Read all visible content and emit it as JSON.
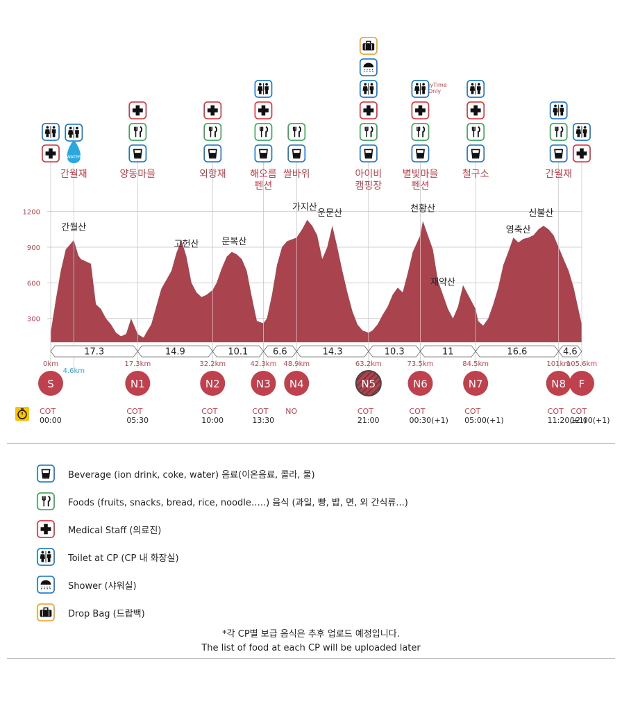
{
  "colors": {
    "fill": "#a9434e",
    "accent": "#c0414e",
    "water": "#29a8df",
    "blue": "#1a77c8",
    "green": "#3aa655",
    "orange": "#f0a030",
    "red": "#d9343f"
  },
  "chart_data": {
    "type": "area",
    "xlabel": "",
    "ylabel": "",
    "xlim": [
      0,
      105.6
    ],
    "ylim": [
      100,
      1250
    ],
    "yticks": [
      300,
      600,
      900,
      1200
    ],
    "x": [
      0,
      1,
      2,
      3,
      4.6,
      5.5,
      6,
      7,
      8,
      9,
      10,
      11,
      12,
      13,
      14,
      15,
      16,
      17.3,
      18,
      18.5,
      19,
      20,
      21,
      22,
      24,
      25,
      26,
      27,
      28,
      29,
      30,
      31,
      32.2,
      33,
      34,
      35,
      36,
      37,
      38,
      39,
      40,
      41,
      42.3,
      43,
      44,
      45,
      46,
      47,
      48.9,
      50,
      51,
      52,
      53,
      54,
      55,
      56,
      57,
      58,
      59,
      60,
      61,
      62,
      63.2,
      64,
      65,
      66,
      67,
      68,
      69,
      70,
      71,
      72,
      73.5,
      74,
      75,
      76,
      77,
      78,
      79,
      80,
      81,
      82,
      83,
      84.5,
      85,
      86,
      87,
      88,
      89,
      90,
      91,
      92,
      93,
      94,
      95,
      96,
      97,
      98,
      99,
      100,
      101,
      102,
      103,
      104,
      105.6
    ],
    "y": [
      180,
      450,
      700,
      880,
      960,
      830,
      800,
      780,
      760,
      420,
      380,
      300,
      250,
      180,
      150,
      170,
      300,
      170,
      150,
      140,
      180,
      250,
      400,
      550,
      700,
      850,
      960,
      820,
      600,
      520,
      480,
      500,
      540,
      600,
      720,
      820,
      860,
      840,
      800,
      700,
      480,
      280,
      260,
      300,
      500,
      750,
      900,
      950,
      980,
      1050,
      1130,
      1080,
      1000,
      800,
      900,
      1080,
      900,
      700,
      520,
      360,
      250,
      200,
      180,
      200,
      250,
      330,
      400,
      500,
      560,
      520,
      680,
      860,
      1000,
      1120,
      1000,
      880,
      620,
      500,
      380,
      300,
      400,
      580,
      500,
      380,
      280,
      240,
      300,
      420,
      560,
      750,
      860,
      980,
      940,
      970,
      980,
      1000,
      1050,
      1080,
      1050,
      1000,
      900,
      800,
      700,
      560,
      250
    ]
  },
  "peaks": [
    {
      "name": "간월산",
      "km": 4.6
    },
    {
      "name": "고헌산",
      "km": 27.0
    },
    {
      "name": "문복산",
      "km": 36.5
    },
    {
      "name": "가지산",
      "km": 50.5
    },
    {
      "name": "운문산",
      "km": 55.5
    },
    {
      "name": "천황산",
      "km": 74.0
    },
    {
      "name": "재약산",
      "km": 78.0
    },
    {
      "name": "영축산",
      "km": 93.0
    },
    {
      "name": "신불산",
      "km": 97.5
    }
  ],
  "locations": [
    {
      "name": "간월재",
      "km": 4.6
    },
    {
      "name": "양동마을",
      "km": 17.3
    },
    {
      "name": "외항재",
      "km": 32.2
    },
    {
      "name": "해오름\n펜션",
      "km": 42.3
    },
    {
      "name": "쌀바위",
      "km": 48.9
    },
    {
      "name": "아이비\n캠핑장",
      "km": 63.2
    },
    {
      "name": "별빛마을\n펜션",
      "km": 73.5
    },
    {
      "name": "철구소",
      "km": 84.5
    },
    {
      "name": "간월재",
      "km": 101
    }
  ],
  "segments": [
    {
      "from": 0,
      "to": 17.3,
      "label": "17.3"
    },
    {
      "from": 17.3,
      "to": 32.2,
      "label": "14.9"
    },
    {
      "from": 32.2,
      "to": 42.3,
      "label": "10.1"
    },
    {
      "from": 42.3,
      "to": 48.9,
      "label": "6.6"
    },
    {
      "from": 48.9,
      "to": 63.2,
      "label": "14.3"
    },
    {
      "from": 63.2,
      "to": 73.5,
      "label": "10.3"
    },
    {
      "from": 73.5,
      "to": 84.5,
      "label": "11"
    },
    {
      "from": 84.5,
      "to": 101,
      "label": "16.6"
    },
    {
      "from": 101,
      "to": 105.6,
      "label": "4.6"
    }
  ],
  "checkpoints": [
    {
      "code": "S",
      "km_label": "0km",
      "km": 0,
      "cot_label": "COT",
      "cot_time": "00:00",
      "hatched": false
    },
    {
      "code": "N1",
      "km_label": "17.3km",
      "km": 17.3,
      "cot_label": "COT",
      "cot_time": "05:30",
      "hatched": false
    },
    {
      "code": "N2",
      "km_label": "32.2km",
      "km": 32.2,
      "cot_label": "COT",
      "cot_time": "10:00",
      "hatched": false
    },
    {
      "code": "N3",
      "km_label": "42.3km",
      "km": 42.3,
      "cot_label": "COT",
      "cot_time": "13:30",
      "hatched": false
    },
    {
      "code": "N4",
      "km_label": "48.9km",
      "km": 48.9,
      "cot_label": "NO",
      "cot_time": "",
      "hatched": false
    },
    {
      "code": "N5",
      "km_label": "63.2km",
      "km": 63.2,
      "cot_label": "COT",
      "cot_time": "21:00",
      "hatched": true
    },
    {
      "code": "N6",
      "km_label": "73.5km",
      "km": 73.5,
      "cot_label": "COT",
      "cot_time": "00:30(+1)",
      "hatched": false
    },
    {
      "code": "N7",
      "km_label": "84.5km",
      "km": 84.5,
      "cot_label": "COT",
      "cot_time": "05:00(+1)",
      "hatched": false
    },
    {
      "code": "N8",
      "km_label": "101km",
      "km": 101,
      "cot_label": "COT",
      "cot_time": "11:20(+1)",
      "hatched": false
    },
    {
      "code": "F",
      "km_label": "105.6km",
      "km": 105.6,
      "cot_label": "COT",
      "cot_time": "12:00(+1)",
      "hatched": false
    }
  ],
  "water_marker": {
    "km": 4.6,
    "km_label": "4.6km",
    "text": "WATER"
  },
  "icon_stacks": [
    {
      "km": 0,
      "icons": [
        "toilet-icon",
        "medical-icon"
      ]
    },
    {
      "km": 17.3,
      "icons": [
        "medical-icon",
        "food-icon",
        "beverage-icon"
      ]
    },
    {
      "km": 32.2,
      "icons": [
        "medical-icon",
        "food-icon",
        "beverage-icon"
      ]
    },
    {
      "km": 42.3,
      "icons": [
        "toilet-icon",
        "medical-icon",
        "food-icon",
        "beverage-icon"
      ]
    },
    {
      "km": 48.9,
      "icons": [
        "food-icon",
        "beverage-icon"
      ]
    },
    {
      "km": 63.2,
      "icons": [
        "dropbag-icon",
        "shower-icon",
        "toilet-icon",
        "medical-icon",
        "food-icon",
        "beverage-icon"
      ]
    },
    {
      "km": 73.5,
      "icons": [
        "toilet-icon",
        "medical-icon",
        "food-icon",
        "beverage-icon"
      ]
    },
    {
      "km": 84.5,
      "icons": [
        "toilet-icon",
        "medical-icon",
        "food-icon",
        "beverage-icon"
      ]
    },
    {
      "km": 101,
      "icons": [
        "toilet-icon",
        "food-icon",
        "beverage-icon"
      ]
    },
    {
      "km": 105.6,
      "icons": [
        "toilet-icon",
        "medical-icon"
      ]
    }
  ],
  "daytime_note": "DayTime\nOnly",
  "legend": [
    {
      "icon": "beverage-icon",
      "label": "Beverage (ion drink, coke, water) 음료(이온음료, 콜라, 물)"
    },
    {
      "icon": "food-icon",
      "label": "Foods (fruits, snacks, bread, rice, noodle…..) 음식 (과일, 빵, 밥, 면, 외 간식류...)"
    },
    {
      "icon": "medical-icon",
      "label": "Medical Staff (의료진)"
    },
    {
      "icon": "toilet-icon",
      "label": "Toilet at CP (CP 내 화장실)"
    },
    {
      "icon": "shower-icon",
      "label": "Shower (샤워실)"
    },
    {
      "icon": "dropbag-icon",
      "label": "Drop Bag (드랍백)"
    }
  ],
  "notes": {
    "korean": "*각 CP별  보급 음식은 추후 업로드 예정입니다.",
    "english": "The list of food at each CP will be uploaded later"
  }
}
